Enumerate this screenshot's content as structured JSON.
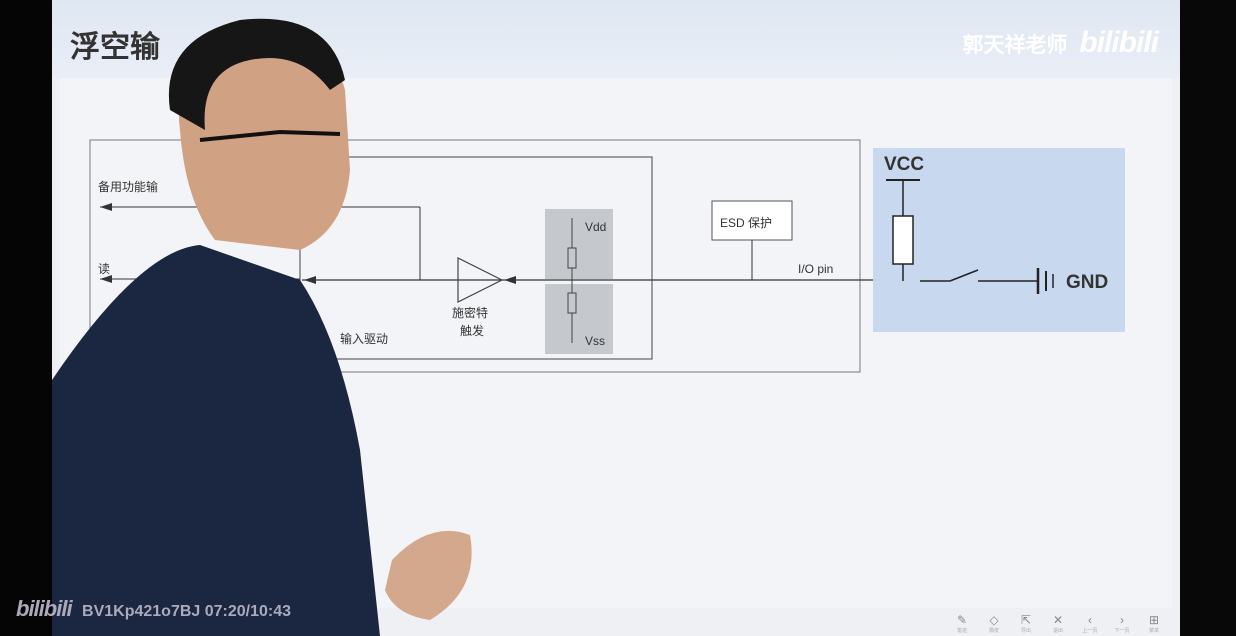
{
  "slide": {
    "title": "浮空输",
    "brand_name": "郭天祥老师",
    "brand_logo": "bilibili"
  },
  "diagram": {
    "alt_func_label": "备用功能输",
    "read_label": "读",
    "input_driver_label": "输入驱动",
    "schmitt_label_line1": "施密特",
    "schmitt_label_line2": "触发",
    "vdd_label": "Vdd",
    "vss_label": "Vss",
    "esd_label": "ESD 保护",
    "io_pin_label": "I/O pin",
    "vcc_label": "VCC",
    "gnd_label": "GND"
  },
  "toolbar": {
    "items": [
      {
        "icon": "✎",
        "caption": "笔迹"
      },
      {
        "icon": "◇",
        "caption": "橡皮"
      },
      {
        "icon": "⇱",
        "caption": "导出"
      },
      {
        "icon": "✕",
        "caption": "退出"
      },
      {
        "icon": "‹",
        "caption": "上一页"
      },
      {
        "icon": "›",
        "caption": "下一页"
      },
      {
        "icon": "⊞",
        "caption": "菜单"
      }
    ]
  },
  "overlay": {
    "logo": "bilibili",
    "video_info": "BV1Kp421o7BJ 07:20/10:43"
  },
  "colors": {
    "accent": "#c7d8ef",
    "header": "#dfe7f2"
  }
}
